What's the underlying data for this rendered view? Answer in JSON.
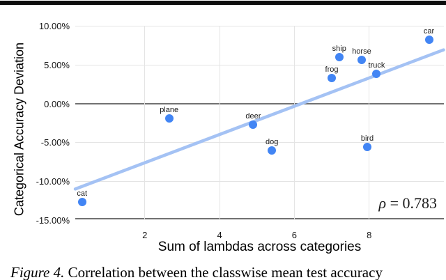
{
  "figure": {
    "caption_label": "Figure 4.",
    "caption_text": "Correlation between the classwise mean test accuracy"
  },
  "annotation": {
    "symbol": "ρ",
    "equation": " = 0.783"
  },
  "chart_data": {
    "type": "scatter",
    "title": "",
    "xlabel": "Sum of lambdas across categories",
    "ylabel": "Categorical Accuracy Deviation",
    "x_range": [
      0.14,
      10.0
    ],
    "y_range": [
      -15,
      10
    ],
    "x_ticks": [
      2,
      4,
      6,
      8
    ],
    "y_ticks": [
      {
        "value": 10,
        "label": "10.00%"
      },
      {
        "value": 5,
        "label": "5.00%"
      },
      {
        "value": 0,
        "label": "0.00%"
      },
      {
        "value": -5,
        "label": "-5.00%"
      },
      {
        "value": -10,
        "label": "-10.00%"
      },
      {
        "value": -15,
        "label": "-15.00%"
      }
    ],
    "points": [
      {
        "label": "cat",
        "x": 0.32,
        "y": -12.7
      },
      {
        "label": "plane",
        "x": 2.65,
        "y": -1.9
      },
      {
        "label": "deer",
        "x": 4.9,
        "y": -2.7
      },
      {
        "label": "dog",
        "x": 5.4,
        "y": -6.0
      },
      {
        "label": "frog",
        "x": 7.0,
        "y": 3.3
      },
      {
        "label": "ship",
        "x": 7.2,
        "y": 6.0
      },
      {
        "label": "horse",
        "x": 7.8,
        "y": 5.6
      },
      {
        "label": "truck",
        "x": 8.2,
        "y": 3.8
      },
      {
        "label": "bird",
        "x": 7.95,
        "y": -5.6
      },
      {
        "label": "car",
        "x": 9.6,
        "y": 8.2
      }
    ],
    "trendline": {
      "x1": 0.14,
      "y1": -11.0,
      "x2": 9.99,
      "y2": 6.9
    },
    "correlation": "ρ = 0.783",
    "grid": true,
    "legend": "none",
    "colors": {
      "point": "#4285F4",
      "trendline": "#A4C2F4",
      "gridline": "#E4E4E4",
      "axis_line": "#717171",
      "text": "#000000"
    }
  }
}
